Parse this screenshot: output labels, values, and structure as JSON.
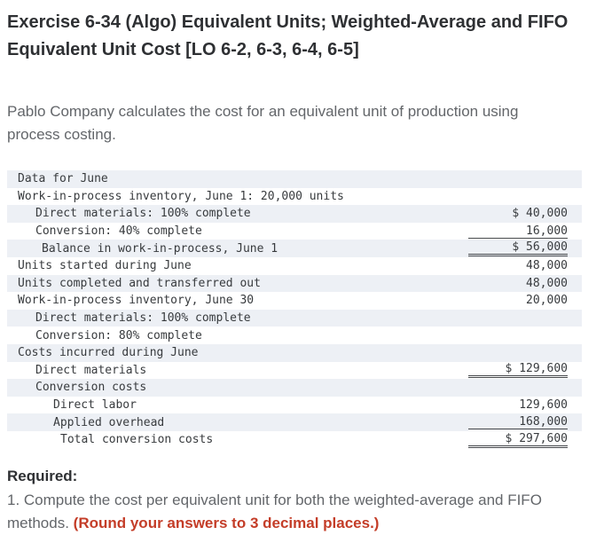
{
  "header": {
    "title": "Exercise 6-34 (Algo) Equivalent Units; Weighted-Average and FIFO Equivalent Unit Cost [LO 6-2, 6-3, 6-4, 6-5]"
  },
  "intro": "Pablo Company calculates the cost for an equivalent unit of production using process costing.",
  "table": {
    "title": "Data for June",
    "rows": [
      {
        "label": "Work-in-process inventory, June 1: 20,000 units",
        "amount": ""
      },
      {
        "label": "Direct materials: 100% complete",
        "amount": "$ 40,000"
      },
      {
        "label": "Conversion: 40% complete",
        "amount": "16,000"
      },
      {
        "label": "Balance in work-in-process, June 1",
        "amount": "$ 56,000"
      },
      {
        "label": "Units started during June",
        "amount": "48,000"
      },
      {
        "label": "Units completed and transferred out",
        "amount": "48,000"
      },
      {
        "label": "Work-in-process inventory, June 30",
        "amount": "20,000"
      },
      {
        "label": "Direct materials: 100% complete",
        "amount": ""
      },
      {
        "label": "Conversion: 80% complete",
        "amount": ""
      },
      {
        "label": "Costs incurred during June",
        "amount": ""
      },
      {
        "label": "Direct materials",
        "amount": "$ 129,600"
      },
      {
        "label": "Conversion costs",
        "amount": ""
      },
      {
        "label": "Direct labor",
        "amount": "129,600"
      },
      {
        "label": "Applied overhead",
        "amount": "168,000"
      },
      {
        "label": "Total conversion costs",
        "amount": "$ 297,600"
      }
    ]
  },
  "required": {
    "heading": "Required:",
    "item_text": "1. Compute the cost per equivalent unit for both the weighted-average and FIFO methods. ",
    "item_emphasis": "(Round your answers to 3 decimal places.)"
  },
  "colors": {
    "row_shade": "#edf0f5",
    "emphasis_red": "#c43d28"
  }
}
